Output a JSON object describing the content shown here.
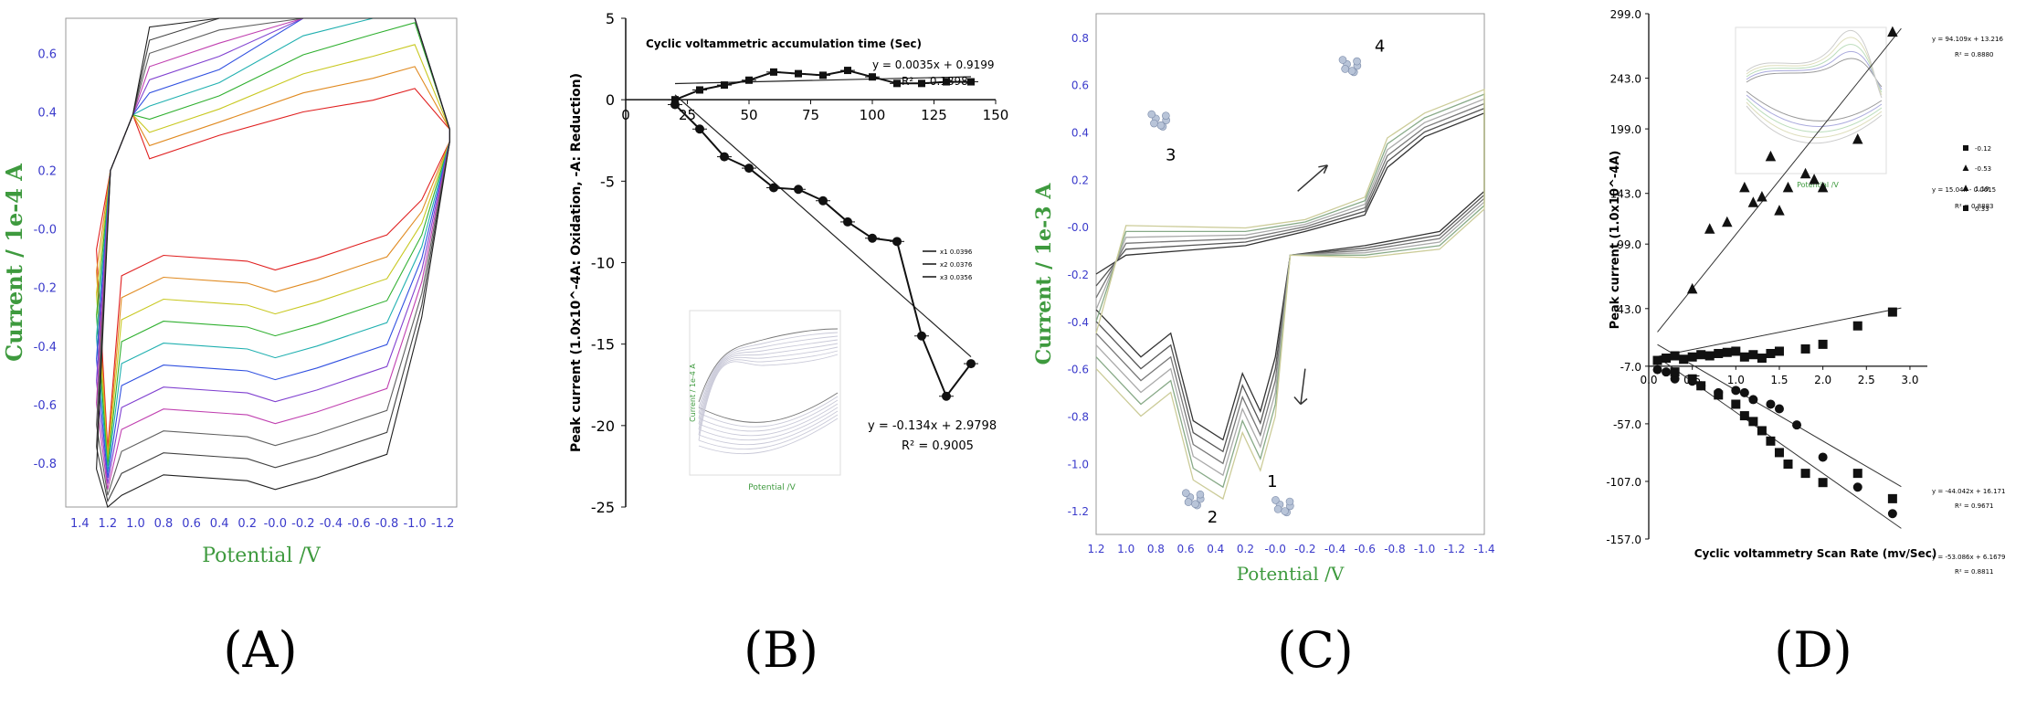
{
  "captions": [
    "(A)",
    "(B)",
    "(C)",
    "(D)"
  ],
  "colors": {
    "cv_green": "#3e9a3e",
    "cv_blue_ticks": "#3a3acb",
    "sweep_palette": [
      "#e02020",
      "#e08a20",
      "#c8c820",
      "#30b030",
      "#20b0b0",
      "#3050e0",
      "#8040d0",
      "#c040b0",
      "#606060",
      "#404040",
      "#202020"
    ]
  },
  "chart_data": [
    {
      "id": "A",
      "type": "line",
      "xlabel": "Potential /V",
      "ylabel": "Current / 1e-4 A",
      "x_ticks": [
        "1.4",
        "1.2",
        "1.0",
        "0.8",
        "0.6",
        "0.4",
        "0.2",
        "-0.0",
        "-0.2",
        "-0.4",
        "-0.6",
        "-0.8",
        "-1.0",
        "-1.2"
      ],
      "y_ticks": [
        "0.6",
        "0.4",
        "0.2",
        "-0.0",
        "-0.2",
        "-0.4",
        "-0.6",
        "-0.8"
      ],
      "xlim": [
        1.5,
        -1.3
      ],
      "ylim": [
        -0.95,
        0.72
      ],
      "n_sweeps": 11
    },
    {
      "id": "B",
      "type": "scatter",
      "title": "Cyclic voltammetric accumulation time (Sec)",
      "ylabel": "Peak current (1.0x10^-4A: Oxidation, -A: Reduction)",
      "x_ticks": [
        "0",
        "25",
        "50",
        "75",
        "100",
        "125",
        "150"
      ],
      "y_ticks": [
        "5",
        "0",
        "-5",
        "-10",
        "-15",
        "-20",
        "-25"
      ],
      "xlim": [
        0,
        150
      ],
      "ylim": [
        -25,
        5
      ],
      "series": [
        {
          "marker": "square",
          "x": [
            20,
            30,
            40,
            50,
            60,
            70,
            80,
            90,
            100,
            110,
            120,
            130,
            140
          ],
          "y": [
            0,
            0.6,
            0.9,
            1.2,
            1.7,
            1.6,
            1.5,
            1.8,
            1.4,
            1.0,
            1.0,
            1.1,
            1.1
          ]
        },
        {
          "marker": "circle",
          "x": [
            20,
            30,
            40,
            50,
            60,
            70,
            80,
            90,
            100,
            110,
            120,
            130,
            140
          ],
          "y": [
            -0.3,
            -1.8,
            -3.5,
            -4.2,
            -5.4,
            -5.5,
            -6.2,
            -7.5,
            -8.5,
            -8.7,
            -14.5,
            -18.2,
            -16.2
          ]
        }
      ],
      "fits": [
        {
          "equation": "y = 0.0035x + 0.9199",
          "r2": "R² = 0.1898",
          "slope": 0.0035,
          "intercept": 0.9199,
          "x_range": [
            20,
            140
          ]
        },
        {
          "equation": "y = -0.134x + 2.9798",
          "r2": "R² = 0.9005",
          "slope": -0.134,
          "intercept": 2.9798,
          "x_range": [
            20,
            140
          ]
        }
      ],
      "legend": [
        "x1 0.0396",
        "x2 0.0376",
        "x3 0.0356"
      ],
      "inset": {
        "xlabel": "Potential /V",
        "ylabel": "Current / 1e-4 A"
      }
    },
    {
      "id": "C",
      "type": "line",
      "xlabel": "Potential /V",
      "ylabel": "Current / 1e-3 A",
      "x_ticks": [
        "1.2",
        "1.0",
        "0.8",
        "0.6",
        "0.4",
        "0.2",
        "-0.0",
        "-0.2",
        "-0.4",
        "-0.6",
        "-0.8",
        "-1.0",
        "-1.2",
        "-1.4"
      ],
      "y_ticks": [
        "0.8",
        "0.6",
        "0.4",
        "0.2",
        "-0.0",
        "-0.2",
        "-0.4",
        "-0.6",
        "-0.8",
        "-1.0",
        "-1.2"
      ],
      "xlim": [
        1.2,
        -1.4
      ],
      "ylim": [
        -1.3,
        0.9
      ],
      "annotations": [
        "1",
        "2",
        "3",
        "4"
      ]
    },
    {
      "id": "D",
      "type": "scatter",
      "xlabel": "Cyclic voltammetry Scan Rate (mv/Sec)",
      "ylabel": "Peak current (1.0x10^-4A)",
      "x_ticks": [
        "0.0",
        "0.5",
        "1.0",
        "1.5",
        "2.0",
        "2.5",
        "3.0"
      ],
      "y_ticks": [
        "299.0",
        "243.0",
        "199.0",
        "143.0",
        "99.0",
        "43.0",
        "-7.0",
        "-57.0",
        "-107.0",
        "-157.0"
      ],
      "xlim": [
        0,
        3.2
      ],
      "ylim": [
        -157,
        299
      ],
      "series": [
        {
          "marker": "triangle",
          "x": [
            0.5,
            0.7,
            0.9,
            1.1,
            1.2,
            1.3,
            1.4,
            1.5,
            1.6,
            1.8,
            1.9,
            2.0,
            2.4,
            2.8
          ],
          "y": [
            60,
            112,
            118,
            148,
            135,
            140,
            175,
            128,
            148,
            160,
            155,
            148,
            190,
            283
          ]
        },
        {
          "marker": "square",
          "x": [
            0.1,
            0.2,
            0.3,
            0.4,
            0.5,
            0.6,
            0.7,
            0.8,
            0.9,
            1.0,
            1.1,
            1.2,
            1.3,
            1.4,
            1.5,
            1.8,
            2.0,
            2.4,
            2.8
          ],
          "y": [
            -2,
            0,
            2,
            -1,
            1,
            3,
            2,
            4,
            5,
            6,
            1,
            3,
            0,
            4,
            6,
            8,
            12,
            28,
            40
          ]
        },
        {
          "marker": "circle",
          "x": [
            0.1,
            0.2,
            0.3,
            0.5,
            0.6,
            0.8,
            1.0,
            1.1,
            1.2,
            1.4,
            1.5,
            1.7,
            2.0,
            2.4,
            2.8
          ],
          "y": [
            -10,
            -12,
            -18,
            -20,
            -24,
            -30,
            -28,
            -30,
            -36,
            -40,
            -44,
            -58,
            -86,
            -112,
            -135
          ]
        },
        {
          "marker": "square",
          "x": [
            0.3,
            0.5,
            0.6,
            0.8,
            1.0,
            1.1,
            1.2,
            1.3,
            1.4,
            1.5,
            1.6,
            1.8,
            2.0,
            2.4,
            2.8
          ],
          "y": [
            -12,
            -18,
            -24,
            -32,
            -40,
            -50,
            -55,
            -63,
            -72,
            -82,
            -92,
            -100,
            -108,
            -100,
            -122
          ]
        }
      ],
      "fits": [
        {
          "equation": "y = 94.109x + 13.216",
          "r2": "R² = 0.8880",
          "slope": 94.109,
          "intercept": 13.216
        },
        {
          "equation": "y = 15.04x - 0.0615",
          "r2": "R² = 0.8883",
          "slope": 15.04,
          "intercept": -0.0615
        },
        {
          "equation": "y = -44.042x + 16.171",
          "r2": "R² = 0.9671",
          "slope": -44.042,
          "intercept": 16.171
        },
        {
          "equation": "y = -53.086x + 6.1679",
          "r2": "R² = 0.8811",
          "slope": -53.086,
          "intercept": 6.1679
        }
      ],
      "legend": [
        "-0.12",
        "-0.53",
        "1.19",
        "0.33"
      ],
      "inset": {
        "xlabel": "Potential /V"
      }
    }
  ]
}
